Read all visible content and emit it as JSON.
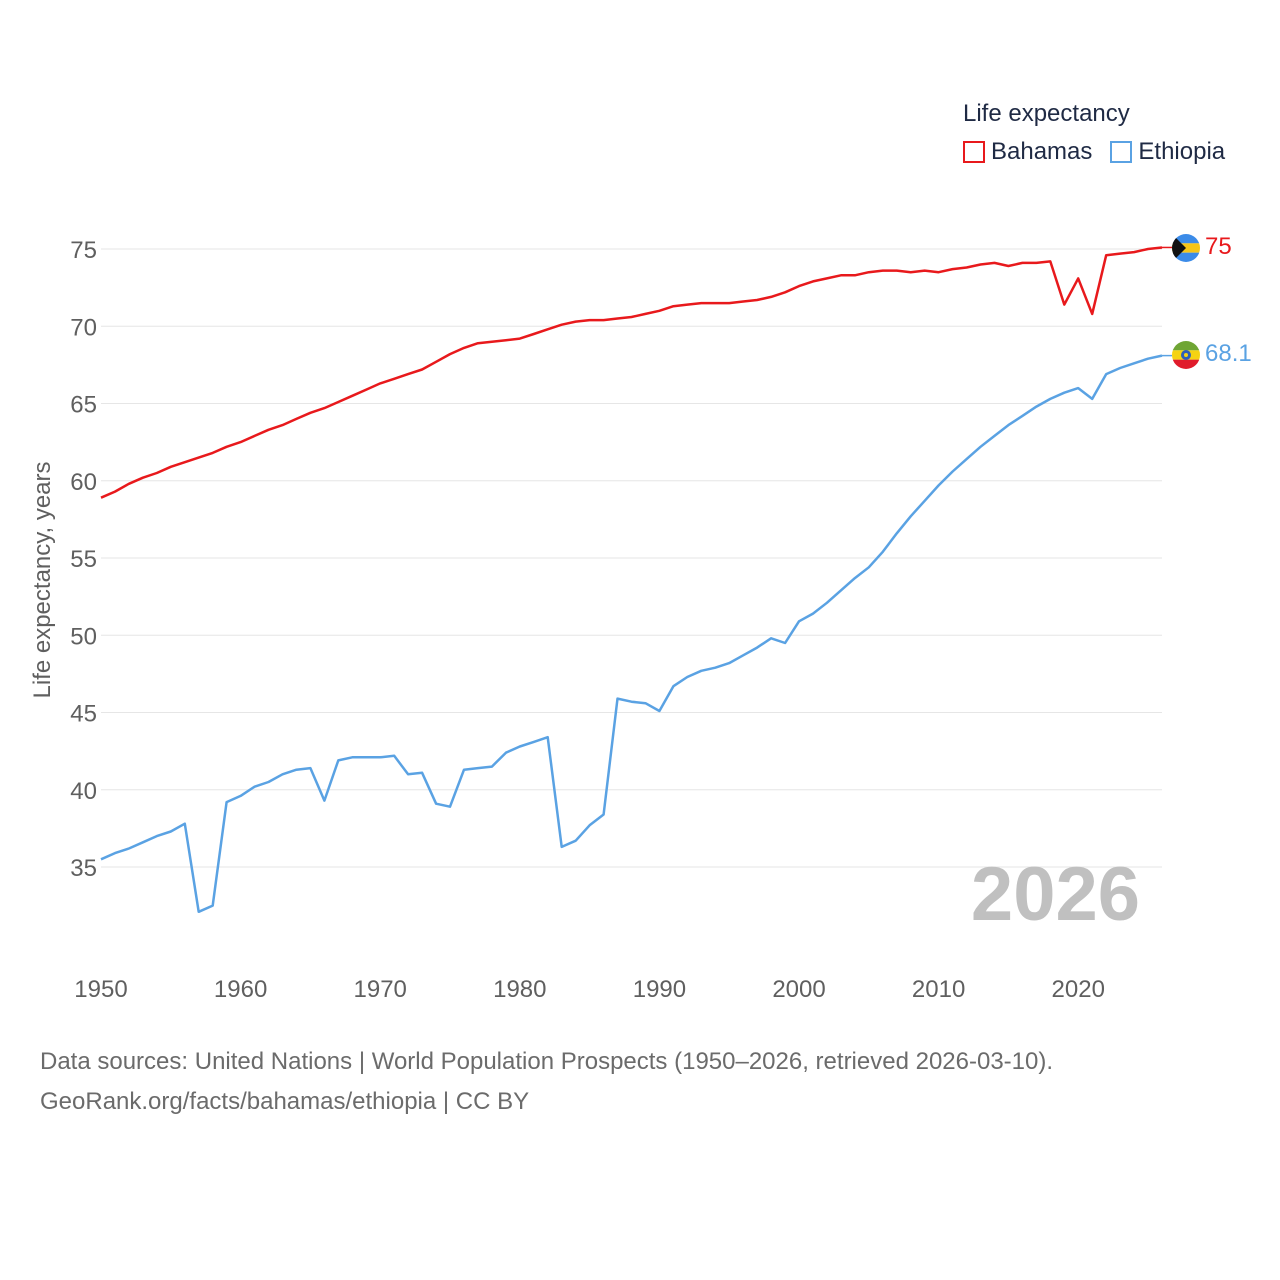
{
  "chart_data": {
    "type": "line",
    "title": "",
    "ylabel": "Life expectancy, years",
    "xlabel": "",
    "xlim": [
      1950,
      2026
    ],
    "ylim": [
      30,
      77
    ],
    "yticks": [
      35,
      40,
      45,
      50,
      55,
      60,
      65,
      70,
      75
    ],
    "xticks": [
      1950,
      1960,
      1970,
      1980,
      1990,
      2000,
      2010,
      2020
    ],
    "grid": true,
    "year_watermark": "2026",
    "legend": {
      "title": "Life expectancy",
      "position": "top-right"
    },
    "x": [
      1950,
      1951,
      1952,
      1953,
      1954,
      1955,
      1956,
      1957,
      1958,
      1959,
      1960,
      1961,
      1962,
      1963,
      1964,
      1965,
      1966,
      1967,
      1968,
      1969,
      1970,
      1971,
      1972,
      1973,
      1974,
      1975,
      1976,
      1977,
      1978,
      1979,
      1980,
      1981,
      1982,
      1983,
      1984,
      1985,
      1986,
      1987,
      1988,
      1989,
      1990,
      1991,
      1992,
      1993,
      1994,
      1995,
      1996,
      1997,
      1998,
      1999,
      2000,
      2001,
      2002,
      2003,
      2004,
      2005,
      2006,
      2007,
      2008,
      2009,
      2010,
      2011,
      2012,
      2013,
      2014,
      2015,
      2016,
      2017,
      2018,
      2019,
      2020,
      2021,
      2022,
      2023,
      2024,
      2025,
      2026
    ],
    "series": [
      {
        "name": "Bahamas",
        "color": "#e8191c",
        "end_label": "75",
        "flag": "bahamas-flag",
        "values": [
          58.9,
          59.3,
          59.8,
          60.2,
          60.5,
          60.9,
          61.2,
          61.5,
          61.8,
          62.2,
          62.5,
          62.9,
          63.3,
          63.6,
          64.0,
          64.4,
          64.7,
          65.1,
          65.5,
          65.9,
          66.3,
          66.6,
          66.9,
          67.2,
          67.7,
          68.2,
          68.6,
          68.9,
          69.0,
          69.1,
          69.2,
          69.5,
          69.8,
          70.1,
          70.3,
          70.4,
          70.4,
          70.5,
          70.6,
          70.8,
          71.0,
          71.3,
          71.4,
          71.5,
          71.5,
          71.5,
          71.6,
          71.7,
          71.9,
          72.2,
          72.6,
          72.9,
          73.1,
          73.3,
          73.3,
          73.5,
          73.6,
          73.6,
          73.5,
          73.6,
          73.5,
          73.7,
          73.8,
          74.0,
          74.1,
          73.9,
          74.1,
          74.1,
          74.2,
          71.4,
          73.1,
          70.8,
          74.6,
          74.7,
          74.8,
          75.0,
          75.1
        ]
      },
      {
        "name": "Ethiopia",
        "color": "#5aa2e3",
        "end_label": "68.1",
        "flag": "ethiopia-flag",
        "values": [
          35.5,
          35.9,
          36.2,
          36.6,
          37.0,
          37.3,
          37.8,
          32.1,
          32.5,
          39.2,
          39.6,
          40.2,
          40.5,
          41.0,
          41.3,
          41.4,
          39.3,
          41.9,
          42.1,
          42.1,
          42.1,
          42.2,
          41.0,
          41.1,
          39.1,
          38.9,
          41.3,
          41.4,
          41.5,
          42.4,
          42.8,
          43.1,
          43.4,
          36.3,
          36.7,
          37.7,
          38.4,
          45.9,
          45.7,
          45.6,
          45.1,
          46.7,
          47.3,
          47.7,
          47.9,
          48.2,
          48.7,
          49.2,
          49.8,
          49.5,
          50.9,
          51.4,
          52.1,
          52.9,
          53.7,
          54.4,
          55.4,
          56.6,
          57.7,
          58.7,
          59.7,
          60.6,
          61.4,
          62.2,
          62.9,
          63.6,
          64.2,
          64.8,
          65.3,
          65.7,
          66.0,
          65.3,
          66.9,
          67.3,
          67.6,
          67.9,
          68.1
        ]
      }
    ]
  },
  "source": {
    "line1": "Data sources: United Nations | World Population Prospects (1950–2026, retrieved 2026-03-10).",
    "line2": "GeoRank.org/facts/bahamas/ethiopia | CC BY"
  }
}
